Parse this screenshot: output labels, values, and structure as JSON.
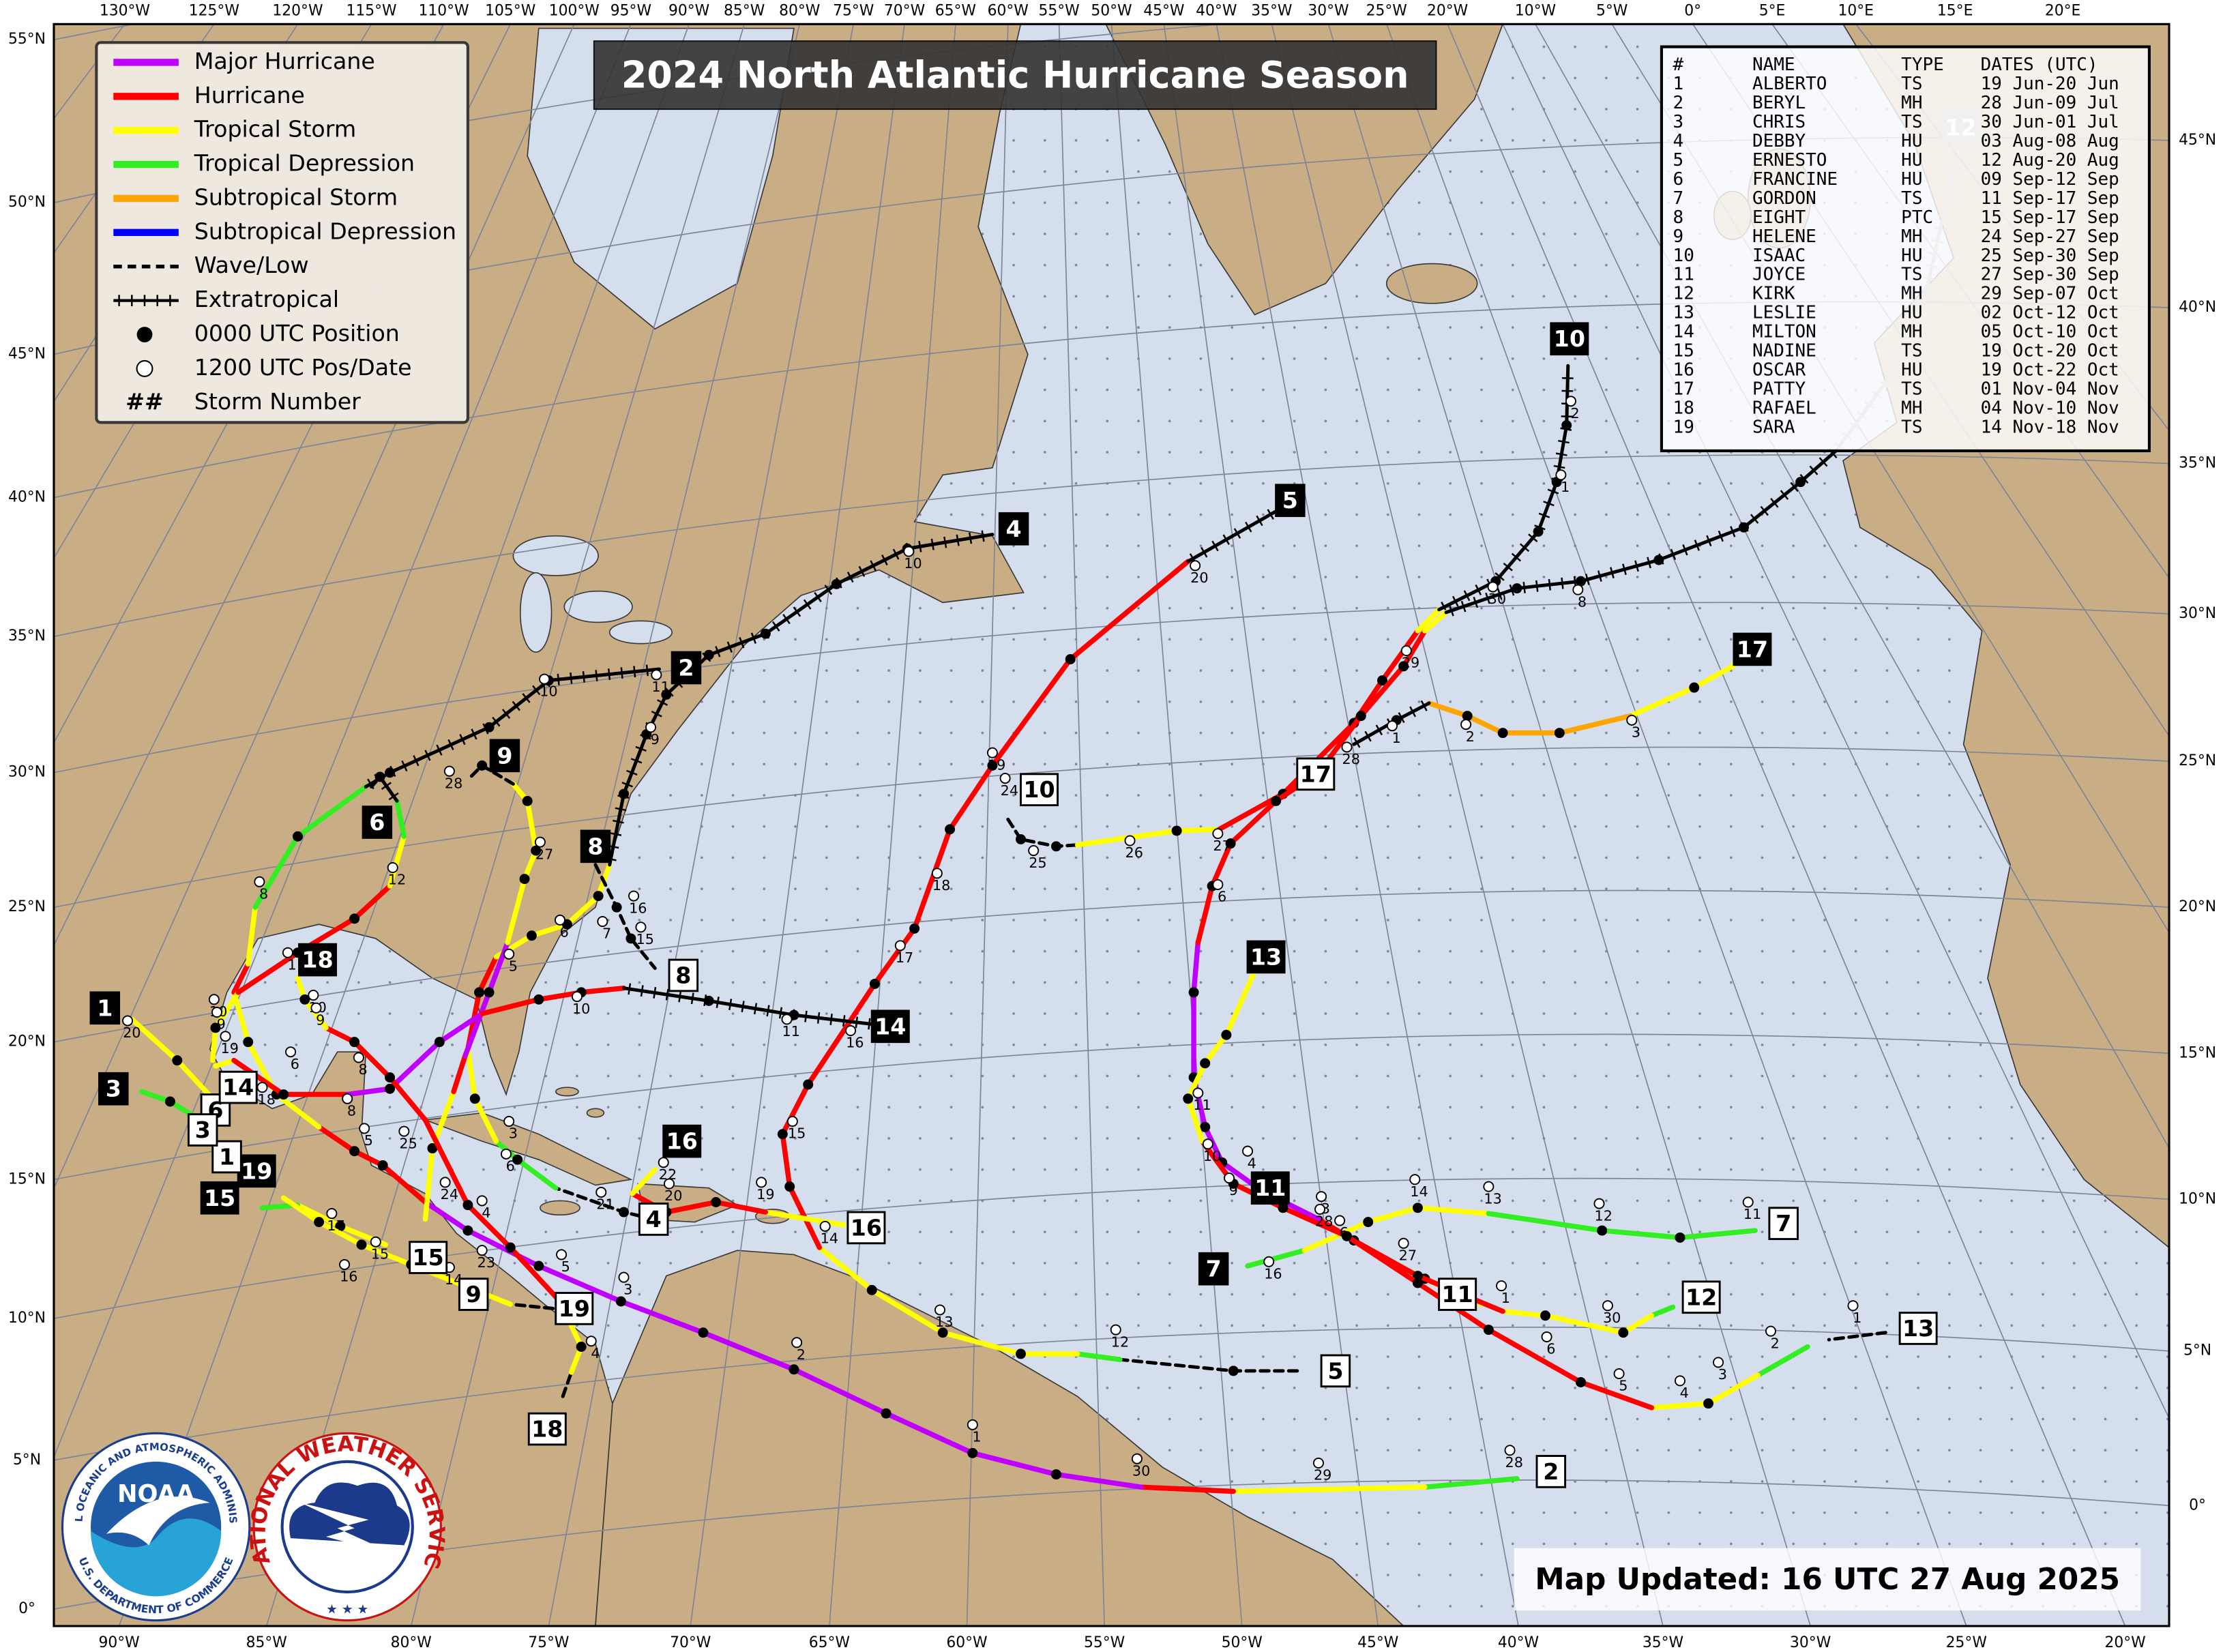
{
  "title": "2024 North Atlantic Hurricane Season",
  "updated": "Map Updated: 16 UTC 27 Aug 2025",
  "legend": [
    {
      "label": "Major Hurricane",
      "color": "#c000ff"
    },
    {
      "label": "Hurricane",
      "color": "#ff0000"
    },
    {
      "label": "Tropical Storm",
      "color": "#ffff00"
    },
    {
      "label": "Tropical Depression",
      "color": "#33ee22"
    },
    {
      "label": "Subtropical Storm",
      "color": "#ffa500"
    },
    {
      "label": "Subtropical Depression",
      "color": "#0000ff"
    },
    {
      "label": "Wave/Low"
    },
    {
      "label": "Extratropical"
    },
    {
      "label": "0000 UTC Position"
    },
    {
      "label": "1200 UTC Pos/Date"
    },
    {
      "label": "Storm Number",
      "symbol": "##"
    }
  ],
  "table": {
    "header": [
      "#",
      "NAME",
      "TYPE",
      "DATES (UTC)"
    ],
    "rows": [
      [
        "1",
        "ALBERTO",
        "TS",
        "19 Jun-20 Jun"
      ],
      [
        "2",
        "BERYL",
        "MH",
        "28 Jun-09 Jul"
      ],
      [
        "3",
        "CHRIS",
        "TS",
        "30 Jun-01 Jul"
      ],
      [
        "4",
        "DEBBY",
        "HU",
        "03 Aug-08 Aug"
      ],
      [
        "5",
        "ERNESTO",
        "HU",
        "12 Aug-20 Aug"
      ],
      [
        "6",
        "FRANCINE",
        "HU",
        "09 Sep-12 Sep"
      ],
      [
        "7",
        "GORDON",
        "TS",
        "11 Sep-17 Sep"
      ],
      [
        "8",
        "EIGHT",
        "PTC",
        "15 Sep-17 Sep"
      ],
      [
        "9",
        "HELENE",
        "MH",
        "24 Sep-27 Sep"
      ],
      [
        "10",
        "ISAAC",
        "HU",
        "25 Sep-30 Sep"
      ],
      [
        "11",
        "JOYCE",
        "TS",
        "27 Sep-30 Sep"
      ],
      [
        "12",
        "KIRK",
        "MH",
        "29 Sep-07 Oct"
      ],
      [
        "13",
        "LESLIE",
        "HU",
        "02 Oct-12 Oct"
      ],
      [
        "14",
        "MILTON",
        "MH",
        "05 Oct-10 Oct"
      ],
      [
        "15",
        "NADINE",
        "TS",
        "19 Oct-20 Oct"
      ],
      [
        "16",
        "OSCAR",
        "HU",
        "19 Oct-22 Oct"
      ],
      [
        "17",
        "PATTY",
        "TS",
        "01 Nov-04 Nov"
      ],
      [
        "18",
        "RAFAEL",
        "MH",
        "04 Nov-10 Nov"
      ],
      [
        "19",
        "SARA",
        "TS",
        "14 Nov-18 Nov"
      ]
    ]
  },
  "lon_labels_top": [
    "130°W",
    "125°W",
    "120°W",
    "115°W",
    "110°W",
    "105°W",
    "100°W",
    "95°W",
    "90°W",
    "85°W",
    "80°W",
    "75°W",
    "70°W",
    "65°W",
    "60°W",
    "55°W",
    "50°W",
    "45°W",
    "40°W",
    "35°W",
    "30°W",
    "25°W",
    "20°W",
    "10°W",
    "5°W",
    "0°",
    "5°E",
    "10°E",
    "15°E",
    "20°E"
  ],
  "lon_labels_bottom": [
    "90°W",
    "85°W",
    "80°W",
    "75°W",
    "70°W",
    "65°W",
    "60°W",
    "55°W",
    "50°W",
    "45°W",
    "40°W",
    "35°W",
    "30°W",
    "25°W",
    "20°W"
  ],
  "lat_labels_left": [
    "55°N",
    "50°N",
    "45°N",
    "40°N",
    "35°N",
    "30°N",
    "25°N",
    "20°N",
    "15°N",
    "10°N",
    "5°N",
    "0°"
  ],
  "lat_labels_right": [
    "45°N",
    "40°N",
    "35°N",
    "30°N",
    "25°N",
    "20°N",
    "15°N",
    "10°N",
    "5°N",
    "0°"
  ],
  "storm_labels": [
    "1",
    "3",
    "2",
    "4",
    "5",
    "6",
    "7",
    "8",
    "9",
    "10",
    "11",
    "13",
    "14",
    "15",
    "16",
    "17",
    "18",
    "19",
    "2",
    "4",
    "5",
    "6",
    "7",
    "8",
    "9",
    "10",
    "11",
    "12",
    "13",
    "14",
    "15",
    "16",
    "17",
    "18",
    "19",
    "1",
    "3",
    "12"
  ],
  "date_labels": [
    "20",
    "10",
    "9",
    "19",
    "18",
    "6",
    "8",
    "8",
    "5",
    "25",
    "24",
    "4",
    "23",
    "5",
    "4",
    "3",
    "2",
    "1",
    "30",
    "29",
    "28",
    "14",
    "15",
    "16",
    "17",
    "3",
    "6",
    "21",
    "22",
    "20",
    "19",
    "14",
    "15",
    "16",
    "17",
    "18",
    "19",
    "20",
    "24",
    "25",
    "26",
    "27",
    "6",
    "11",
    "10",
    "9",
    "4",
    "3",
    "28",
    "6",
    "27",
    "14",
    "13",
    "12",
    "11",
    "1",
    "30",
    "6",
    "5",
    "4",
    "3",
    "2",
    "1",
    "13",
    "12",
    "16",
    "2",
    "3",
    "1",
    "28",
    "29",
    "30",
    "8",
    "1",
    "2",
    "10",
    "11",
    "9",
    "28",
    "27",
    "12",
    "8",
    "1",
    "6",
    "7",
    "16",
    "15",
    "10",
    "11",
    "10",
    "5",
    "10",
    "9"
  ],
  "logos": {
    "noaa": "NOAA",
    "noaa_ring": "NATIONAL OCEANIC AND ATMOSPHERIC ADMINISTRATION",
    "noaa_ring_bottom": "U.S. DEPARTMENT OF COMMERCE",
    "nws_ring": "NATIONAL WEATHER SERVICE"
  }
}
